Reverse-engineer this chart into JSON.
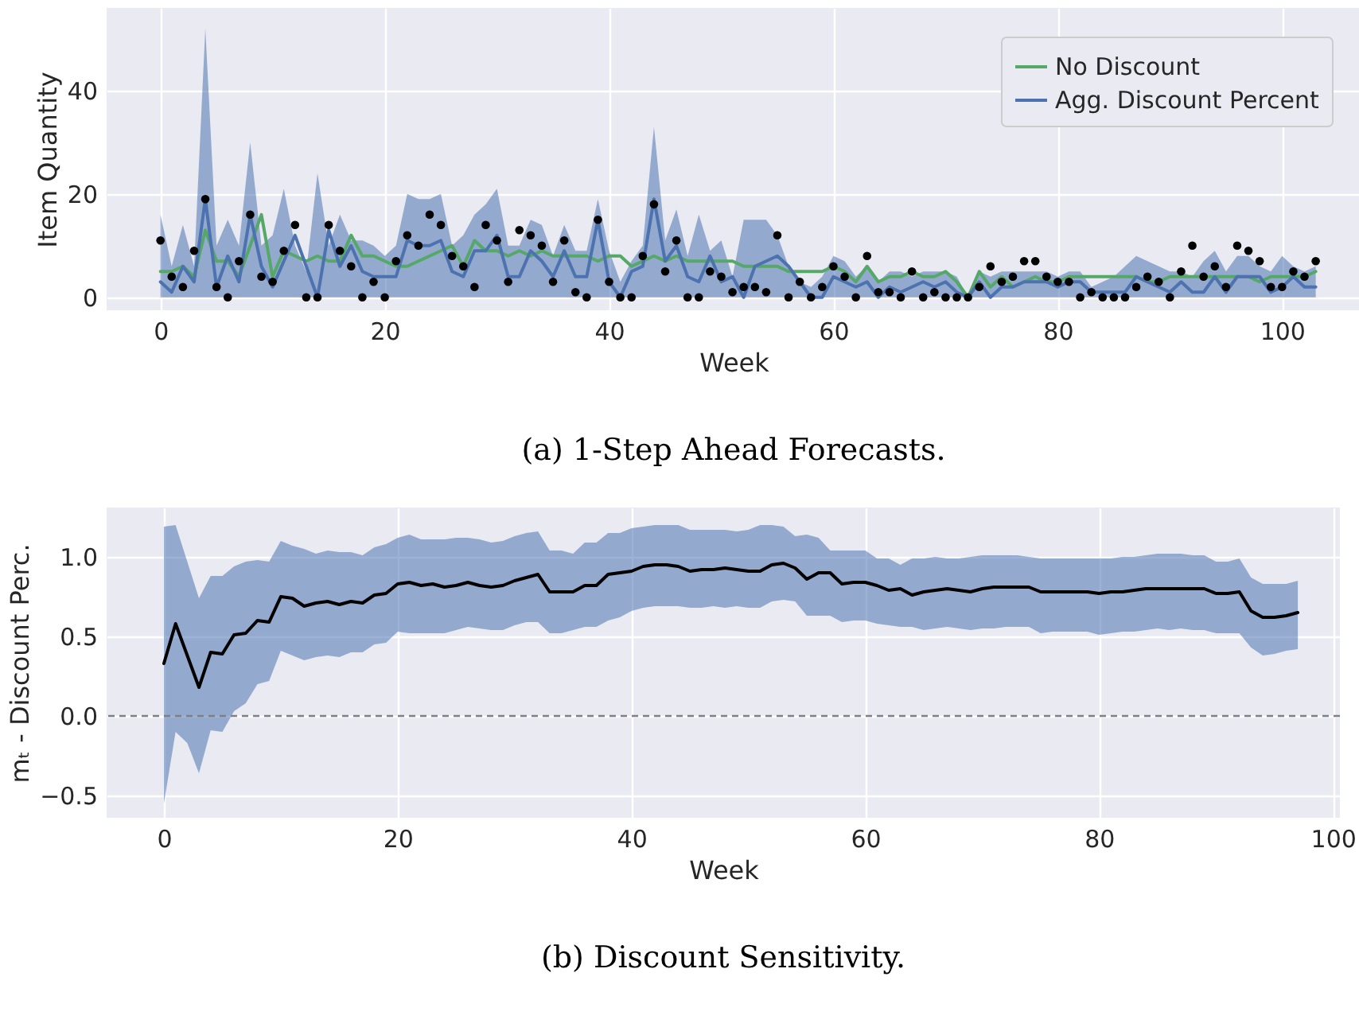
{
  "chart_data": [
    {
      "type": "line",
      "title": "(a) 1-Step Ahead Forecasts.",
      "xlabel": "Week",
      "ylabel": "Item Quantity",
      "xlim": [
        -4.8,
        107
      ],
      "ylim": [
        -2.5,
        56
      ],
      "xticks": [
        0,
        20,
        40,
        60,
        80,
        100
      ],
      "yticks": [
        0,
        20,
        40
      ],
      "grid": true,
      "legend": "top right",
      "x": [
        0,
        1,
        2,
        3,
        4,
        5,
        6,
        7,
        8,
        9,
        10,
        11,
        12,
        13,
        14,
        15,
        16,
        17,
        18,
        19,
        20,
        21,
        22,
        23,
        24,
        25,
        26,
        27,
        28,
        29,
        30,
        31,
        32,
        33,
        34,
        35,
        36,
        37,
        38,
        39,
        40,
        41,
        42,
        43,
        44,
        45,
        46,
        47,
        48,
        49,
        50,
        51,
        52,
        53,
        54,
        55,
        56,
        57,
        58,
        59,
        60,
        61,
        62,
        63,
        64,
        65,
        66,
        67,
        68,
        69,
        70,
        71,
        72,
        73,
        74,
        75,
        76,
        77,
        78,
        79,
        80,
        81,
        82,
        83,
        84,
        85,
        86,
        87,
        88,
        89,
        90,
        91,
        92,
        93,
        94,
        95,
        96,
        97,
        98,
        99,
        100,
        101,
        102,
        103
      ],
      "series": [
        {
          "name": "No Discount",
          "color": "#55a868",
          "values": [
            5,
            5,
            6,
            4,
            13,
            7,
            7,
            4,
            10,
            16,
            4,
            9,
            8,
            7,
            8,
            7,
            7,
            12,
            8,
            8,
            7,
            6,
            6,
            7,
            8,
            9,
            10,
            6,
            11,
            9,
            9,
            8,
            9,
            8,
            9,
            8,
            8,
            8,
            8,
            7,
            8,
            8,
            6,
            7,
            8,
            7,
            8,
            7,
            7,
            7,
            7,
            7,
            6,
            6,
            6,
            6,
            5,
            5,
            5,
            5,
            6,
            5,
            3,
            6,
            3,
            4,
            4,
            5,
            4,
            4,
            5,
            3,
            0,
            5,
            2,
            4,
            2,
            3,
            4,
            3,
            3,
            4,
            4,
            4,
            4,
            4,
            4,
            4,
            3,
            3,
            4,
            4,
            4,
            4,
            4,
            4,
            4,
            4,
            3,
            4,
            4,
            4,
            4,
            5
          ]
        },
        {
          "name": "Agg. Discount Percent",
          "color": "#4c72b0",
          "values": [
            3,
            1,
            6,
            3,
            19,
            2,
            8,
            3,
            16,
            6,
            2,
            7,
            12,
            6,
            0,
            13,
            6,
            10,
            5,
            4,
            4,
            4,
            11,
            10,
            10,
            11,
            5,
            4,
            9,
            9,
            12,
            4,
            4,
            9,
            7,
            4,
            9,
            4,
            4,
            15,
            3,
            0,
            5,
            6,
            19,
            7,
            10,
            4,
            3,
            8,
            3,
            4,
            0,
            6,
            7,
            8,
            6,
            3,
            0,
            0,
            4,
            3,
            2,
            3,
            0,
            2,
            1,
            2,
            3,
            2,
            3,
            1,
            0,
            3,
            0,
            2,
            2,
            3,
            3,
            3,
            2,
            3,
            3,
            1,
            1,
            1,
            1,
            4,
            3,
            2,
            1,
            3,
            1,
            1,
            4,
            1,
            4,
            4,
            4,
            1,
            2,
            4,
            2,
            2
          ],
          "lower": [
            0,
            0,
            0,
            0,
            0,
            0,
            0,
            0,
            0,
            0,
            0,
            0,
            0,
            0,
            0,
            0,
            0,
            0,
            0,
            0,
            0,
            0,
            0,
            0,
            0,
            0,
            0,
            0,
            0,
            0,
            0,
            0,
            0,
            0,
            0,
            0,
            0,
            0,
            0,
            0,
            0,
            0,
            0,
            0,
            0,
            0,
            0,
            0,
            0,
            0,
            0,
            0,
            0,
            0,
            0,
            0,
            0,
            0,
            0,
            0,
            0,
            0,
            0,
            0,
            0,
            0,
            0,
            0,
            0,
            0,
            0,
            0,
            0,
            0,
            0,
            0,
            0,
            0,
            0,
            0,
            0,
            0,
            0,
            0,
            0,
            0,
            0,
            0,
            0,
            0,
            0,
            0,
            0,
            0,
            0,
            0,
            0,
            0,
            0,
            0,
            0,
            0,
            0,
            0
          ],
          "upper": [
            16,
            6,
            14,
            6,
            52,
            10,
            15,
            10,
            30,
            10,
            12,
            21,
            10,
            5,
            24,
            10,
            16,
            11,
            11,
            10,
            8,
            10,
            20,
            19,
            19,
            20,
            10,
            12,
            16,
            18,
            21,
            10,
            10,
            15,
            14,
            8,
            14,
            9,
            9,
            19,
            9,
            3,
            7,
            10,
            33,
            11,
            17,
            8,
            16,
            9,
            11,
            4,
            15,
            15,
            15,
            12,
            6,
            3,
            2,
            4,
            8,
            7,
            4,
            6,
            3,
            5,
            5,
            4,
            5,
            5,
            5,
            4,
            0,
            5,
            4,
            5,
            5,
            5,
            5,
            5,
            4,
            5,
            5,
            2,
            3,
            4,
            6,
            8,
            7,
            6,
            5,
            5,
            4,
            7,
            9,
            5,
            8,
            8,
            6,
            5,
            8,
            6,
            5,
            6
          ]
        },
        {
          "type": "scatter",
          "color": "#000000",
          "values": [
            11,
            4,
            2,
            9,
            19,
            2,
            0,
            7,
            16,
            4,
            3,
            9,
            14,
            0,
            0,
            14,
            9,
            6,
            0,
            3,
            0,
            7,
            12,
            10,
            16,
            14,
            8,
            6,
            2,
            14,
            11,
            3,
            13,
            12,
            10,
            3,
            11,
            1,
            0,
            15,
            3,
            0,
            0,
            8,
            18,
            5,
            11,
            0,
            0,
            5,
            4,
            1,
            2,
            2,
            1,
            12,
            0,
            3,
            0,
            2,
            6,
            4,
            0,
            8,
            1,
            1,
            0,
            5,
            0,
            1,
            0,
            0,
            0,
            2,
            6,
            3,
            4,
            7,
            7,
            4,
            3,
            3,
            0,
            1,
            0,
            0,
            0,
            2,
            4,
            3,
            0,
            5,
            10,
            4,
            6,
            2,
            10,
            9,
            7,
            2,
            2,
            5,
            4,
            7
          ]
        }
      ]
    },
    {
      "type": "line",
      "title": "(b) Discount Sensitivity.",
      "xlabel": "Week",
      "ylabel": "mₜ - Discount Perc.",
      "xlim": [
        -4.9,
        100.6
      ],
      "ylim": [
        -0.64,
        1.31
      ],
      "xticks": [
        0,
        20,
        40,
        60,
        80,
        100
      ],
      "yticks": [
        {
          "value": -0.5,
          "label": "−0.5"
        },
        {
          "value": 0,
          "label": "0.0"
        },
        {
          "value": 0.5,
          "label": "0.5"
        },
        {
          "value": 1,
          "label": "1.0"
        }
      ],
      "grid": true,
      "ref_lines": [
        {
          "axis": "y",
          "value": 0,
          "color": "#808080",
          "line_style": "dashed"
        }
      ],
      "x": [
        0,
        1,
        2,
        3,
        4,
        5,
        6,
        7,
        8,
        9,
        10,
        11,
        12,
        13,
        14,
        15,
        16,
        17,
        18,
        19,
        20,
        21,
        22,
        23,
        24,
        25,
        26,
        27,
        28,
        29,
        30,
        31,
        32,
        33,
        34,
        35,
        36,
        37,
        38,
        39,
        40,
        41,
        42,
        43,
        44,
        45,
        46,
        47,
        48,
        49,
        50,
        51,
        52,
        53,
        54,
        55,
        56,
        57,
        58,
        59,
        60,
        61,
        62,
        63,
        64,
        65,
        66,
        67,
        68,
        69,
        70,
        71,
        72,
        73,
        74,
        75,
        76,
        77,
        78,
        79,
        80,
        81,
        82,
        83,
        84,
        85,
        86,
        87,
        88,
        89,
        90,
        91,
        92,
        93,
        94,
        95,
        96,
        97
      ],
      "series": [
        {
          "color": "#000000",
          "values": [
            0.33,
            0.58,
            0.38,
            0.18,
            0.4,
            0.39,
            0.51,
            0.52,
            0.6,
            0.59,
            0.75,
            0.74,
            0.69,
            0.71,
            0.72,
            0.7,
            0.72,
            0.71,
            0.76,
            0.77,
            0.83,
            0.84,
            0.82,
            0.83,
            0.81,
            0.82,
            0.84,
            0.82,
            0.81,
            0.82,
            0.85,
            0.87,
            0.89,
            0.78,
            0.78,
            0.78,
            0.82,
            0.82,
            0.89,
            0.9,
            0.91,
            0.94,
            0.95,
            0.95,
            0.94,
            0.91,
            0.92,
            0.92,
            0.93,
            0.92,
            0.91,
            0.91,
            0.95,
            0.96,
            0.93,
            0.86,
            0.9,
            0.9,
            0.83,
            0.84,
            0.84,
            0.82,
            0.79,
            0.8,
            0.76,
            0.78,
            0.79,
            0.8,
            0.79,
            0.78,
            0.8,
            0.81,
            0.81,
            0.81,
            0.81,
            0.78,
            0.78,
            0.78,
            0.78,
            0.78,
            0.77,
            0.78,
            0.78,
            0.79,
            0.8,
            0.8,
            0.8,
            0.8,
            0.8,
            0.8,
            0.77,
            0.77,
            0.78,
            0.66,
            0.62,
            0.62,
            0.63,
            0.65
          ],
          "lower": [
            -0.55,
            -0.1,
            -0.17,
            -0.36,
            -0.09,
            -0.1,
            0.03,
            0.08,
            0.2,
            0.22,
            0.41,
            0.38,
            0.35,
            0.37,
            0.38,
            0.37,
            0.4,
            0.4,
            0.45,
            0.46,
            0.53,
            0.52,
            0.52,
            0.52,
            0.52,
            0.54,
            0.56,
            0.55,
            0.54,
            0.54,
            0.57,
            0.59,
            0.59,
            0.52,
            0.52,
            0.54,
            0.56,
            0.56,
            0.6,
            0.62,
            0.66,
            0.68,
            0.69,
            0.69,
            0.69,
            0.68,
            0.68,
            0.69,
            0.68,
            0.69,
            0.68,
            0.68,
            0.72,
            0.73,
            0.72,
            0.63,
            0.63,
            0.63,
            0.59,
            0.6,
            0.6,
            0.58,
            0.57,
            0.56,
            0.56,
            0.54,
            0.55,
            0.56,
            0.55,
            0.54,
            0.55,
            0.55,
            0.56,
            0.56,
            0.56,
            0.52,
            0.53,
            0.53,
            0.53,
            0.53,
            0.51,
            0.52,
            0.53,
            0.53,
            0.54,
            0.55,
            0.54,
            0.55,
            0.54,
            0.54,
            0.52,
            0.52,
            0.52,
            0.43,
            0.38,
            0.39,
            0.41,
            0.42
          ],
          "upper": [
            1.19,
            1.2,
            0.97,
            0.74,
            0.88,
            0.88,
            0.94,
            0.97,
            0.98,
            0.97,
            1.1,
            1.07,
            1.05,
            1.02,
            1.04,
            1.03,
            1.03,
            1.01,
            1.06,
            1.08,
            1.12,
            1.14,
            1.11,
            1.11,
            1.11,
            1.12,
            1.12,
            1.11,
            1.09,
            1.1,
            1.13,
            1.15,
            1.16,
            1.04,
            1.04,
            1.02,
            1.09,
            1.09,
            1.15,
            1.15,
            1.18,
            1.19,
            1.2,
            1.2,
            1.2,
            1.17,
            1.17,
            1.17,
            1.17,
            1.16,
            1.17,
            1.2,
            1.2,
            1.19,
            1.13,
            1.14,
            1.12,
            1.04,
            1.04,
            1.04,
            1.04,
            0.99,
            0.99,
            0.95,
            0.99,
            0.99,
            1.0,
            0.99,
            0.99,
            1.0,
            1.01,
            1.01,
            1.01,
            1.01,
            1.0,
            0.99,
            0.99,
            0.99,
            0.99,
            0.99,
            0.99,
            0.99,
            1.0,
            1.0,
            1.01,
            1.02,
            1.02,
            1.02,
            1.01,
            1.01,
            0.97,
            0.97,
            0.99,
            0.87,
            0.83,
            0.83,
            0.83,
            0.85
          ]
        }
      ]
    }
  ]
}
